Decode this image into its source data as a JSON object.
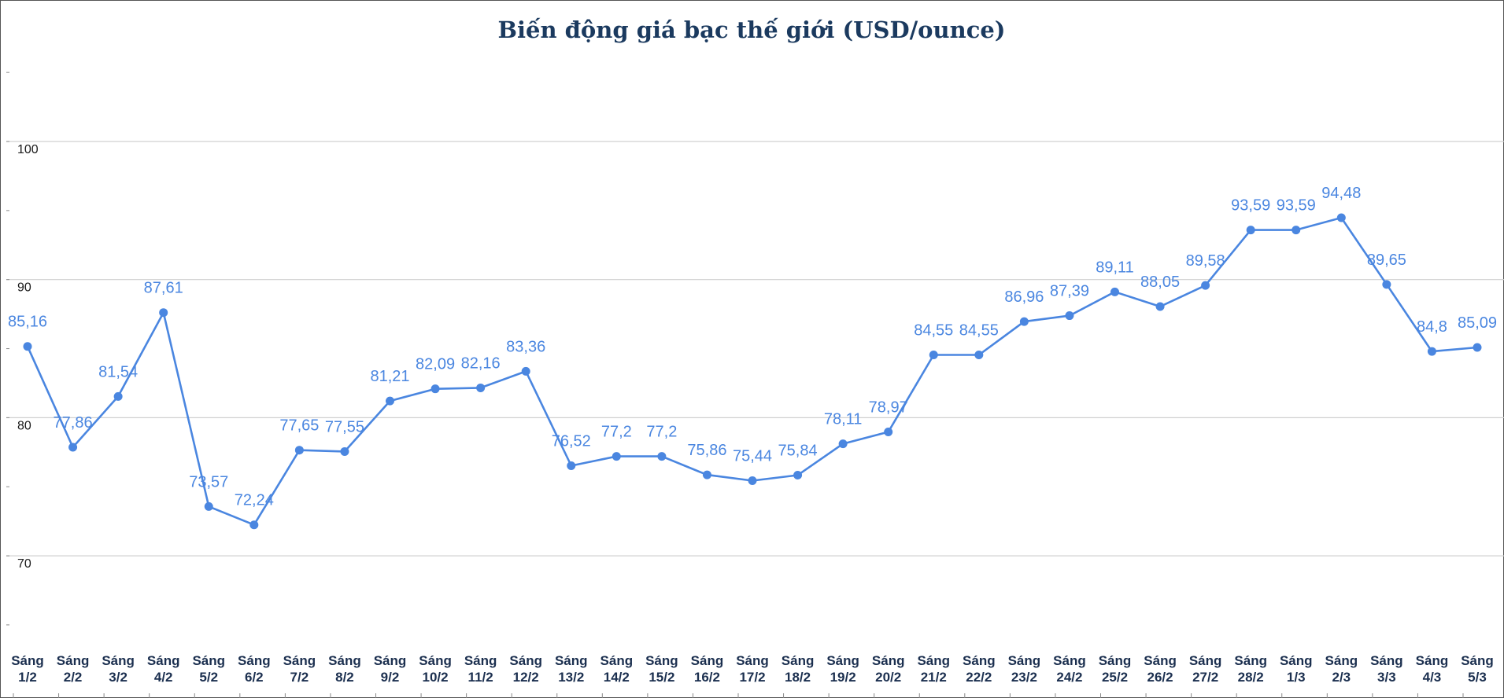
{
  "colors": {
    "series": "#4a86e0",
    "label": "#4a86e0",
    "title": "#1b3a5f",
    "axis_text": "#1a1a1a",
    "x_label": "#1b2f4f",
    "grid": "#d0d0d0",
    "frame": "#555555"
  },
  "chart_data": {
    "type": "line",
    "title": "Biến động giá bạc thế giới (USD/ounce)",
    "xlabel": "",
    "ylabel": "",
    "ylim": [
      62,
      108
    ],
    "y_ticks": [
      70,
      80,
      90,
      100
    ],
    "grid": true,
    "legend": "none",
    "categories": [
      [
        "Sáng",
        "1/2"
      ],
      [
        "Sáng",
        "2/2"
      ],
      [
        "Sáng",
        "3/2"
      ],
      [
        "Sáng",
        "4/2"
      ],
      [
        "Sáng",
        "5/2"
      ],
      [
        "Sáng",
        "6/2"
      ],
      [
        "Sáng",
        "7/2"
      ],
      [
        "Sáng",
        "8/2"
      ],
      [
        "Sáng",
        "9/2"
      ],
      [
        "Sáng",
        "10/2"
      ],
      [
        "Sáng",
        "11/2"
      ],
      [
        "Sáng",
        "12/2"
      ],
      [
        "Sáng",
        "13/2"
      ],
      [
        "Sáng",
        "14/2"
      ],
      [
        "Sáng",
        "15/2"
      ],
      [
        "Sáng",
        "16/2"
      ],
      [
        "Sáng",
        "17/2"
      ],
      [
        "Sáng",
        "18/2"
      ],
      [
        "Sáng",
        "19/2"
      ],
      [
        "Sáng",
        "20/2"
      ],
      [
        "Sáng",
        "21/2"
      ],
      [
        "Sáng",
        "22/2"
      ],
      [
        "Sáng",
        "23/2"
      ],
      [
        "Sáng",
        "24/2"
      ],
      [
        "Sáng",
        "25/2"
      ],
      [
        "Sáng",
        "26/2"
      ],
      [
        "Sáng",
        "27/2"
      ],
      [
        "Sáng",
        "28/2"
      ],
      [
        "Sáng",
        "1/3"
      ],
      [
        "Sáng",
        "2/3"
      ],
      [
        "Sáng",
        "3/3"
      ],
      [
        "Sáng",
        "4/3"
      ],
      [
        "Sáng",
        "5/3"
      ]
    ],
    "series": [
      {
        "name": "Giá bạc thế giới",
        "values": [
          85.16,
          77.86,
          81.54,
          87.61,
          73.57,
          72.24,
          77.65,
          77.55,
          81.21,
          82.09,
          82.16,
          83.36,
          76.52,
          77.2,
          77.2,
          75.86,
          75.44,
          75.84,
          78.11,
          78.97,
          84.55,
          84.55,
          86.96,
          87.39,
          89.11,
          88.05,
          89.58,
          93.59,
          93.59,
          94.48,
          89.65,
          84.8,
          85.09
        ],
        "labels": [
          "85,16",
          "77,86",
          "81,54",
          "87,61",
          "73,57",
          "72,24",
          "77,65",
          "77,55",
          "81,21",
          "82,09",
          "82,16",
          "83,36",
          "76,52",
          "77,2",
          "77,2",
          "75,86",
          "75,44",
          "75,84",
          "78,11",
          "78,97",
          "84,55",
          "84,55",
          "86,96",
          "87,39",
          "89,11",
          "88,05",
          "89,58",
          "93,59",
          "93,59",
          "94,48",
          "89,65",
          "84,8",
          "85,09"
        ]
      }
    ]
  }
}
